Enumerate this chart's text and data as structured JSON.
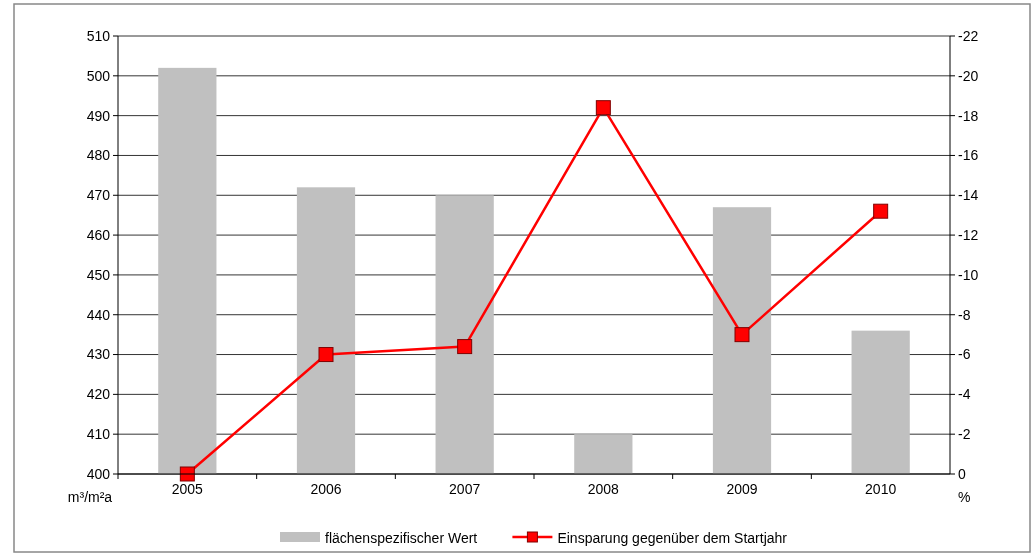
{
  "chart_data": {
    "type": "bar",
    "categories": [
      "2005",
      "2006",
      "2007",
      "2008",
      "2009",
      "2010"
    ],
    "series": [
      {
        "name": "flächenspezifischer Wert",
        "color": "#c0c0c0",
        "values": [
          502,
          472,
          470,
          410,
          467,
          436
        ]
      },
      {
        "name": "Einsparung gegenüber dem Startjahr",
        "type": "line",
        "axis": "y2",
        "color": "#ff0000",
        "marker": "square",
        "values": [
          0,
          -6.0,
          -6.4,
          -18.4,
          -7.0,
          -13.2
        ]
      }
    ],
    "ylabel": "m³/m²a",
    "y2label": "%",
    "ylim": [
      400,
      510
    ],
    "yticks": [
      400,
      410,
      420,
      430,
      440,
      450,
      460,
      470,
      480,
      490,
      500,
      510
    ],
    "y2lim": [
      0,
      -22
    ],
    "y2ticks": [
      0,
      -2,
      -4,
      -6,
      -8,
      -10,
      -12,
      -14,
      -16,
      -18,
      -20,
      -22
    ],
    "grid": "y",
    "legend": "bottom"
  }
}
